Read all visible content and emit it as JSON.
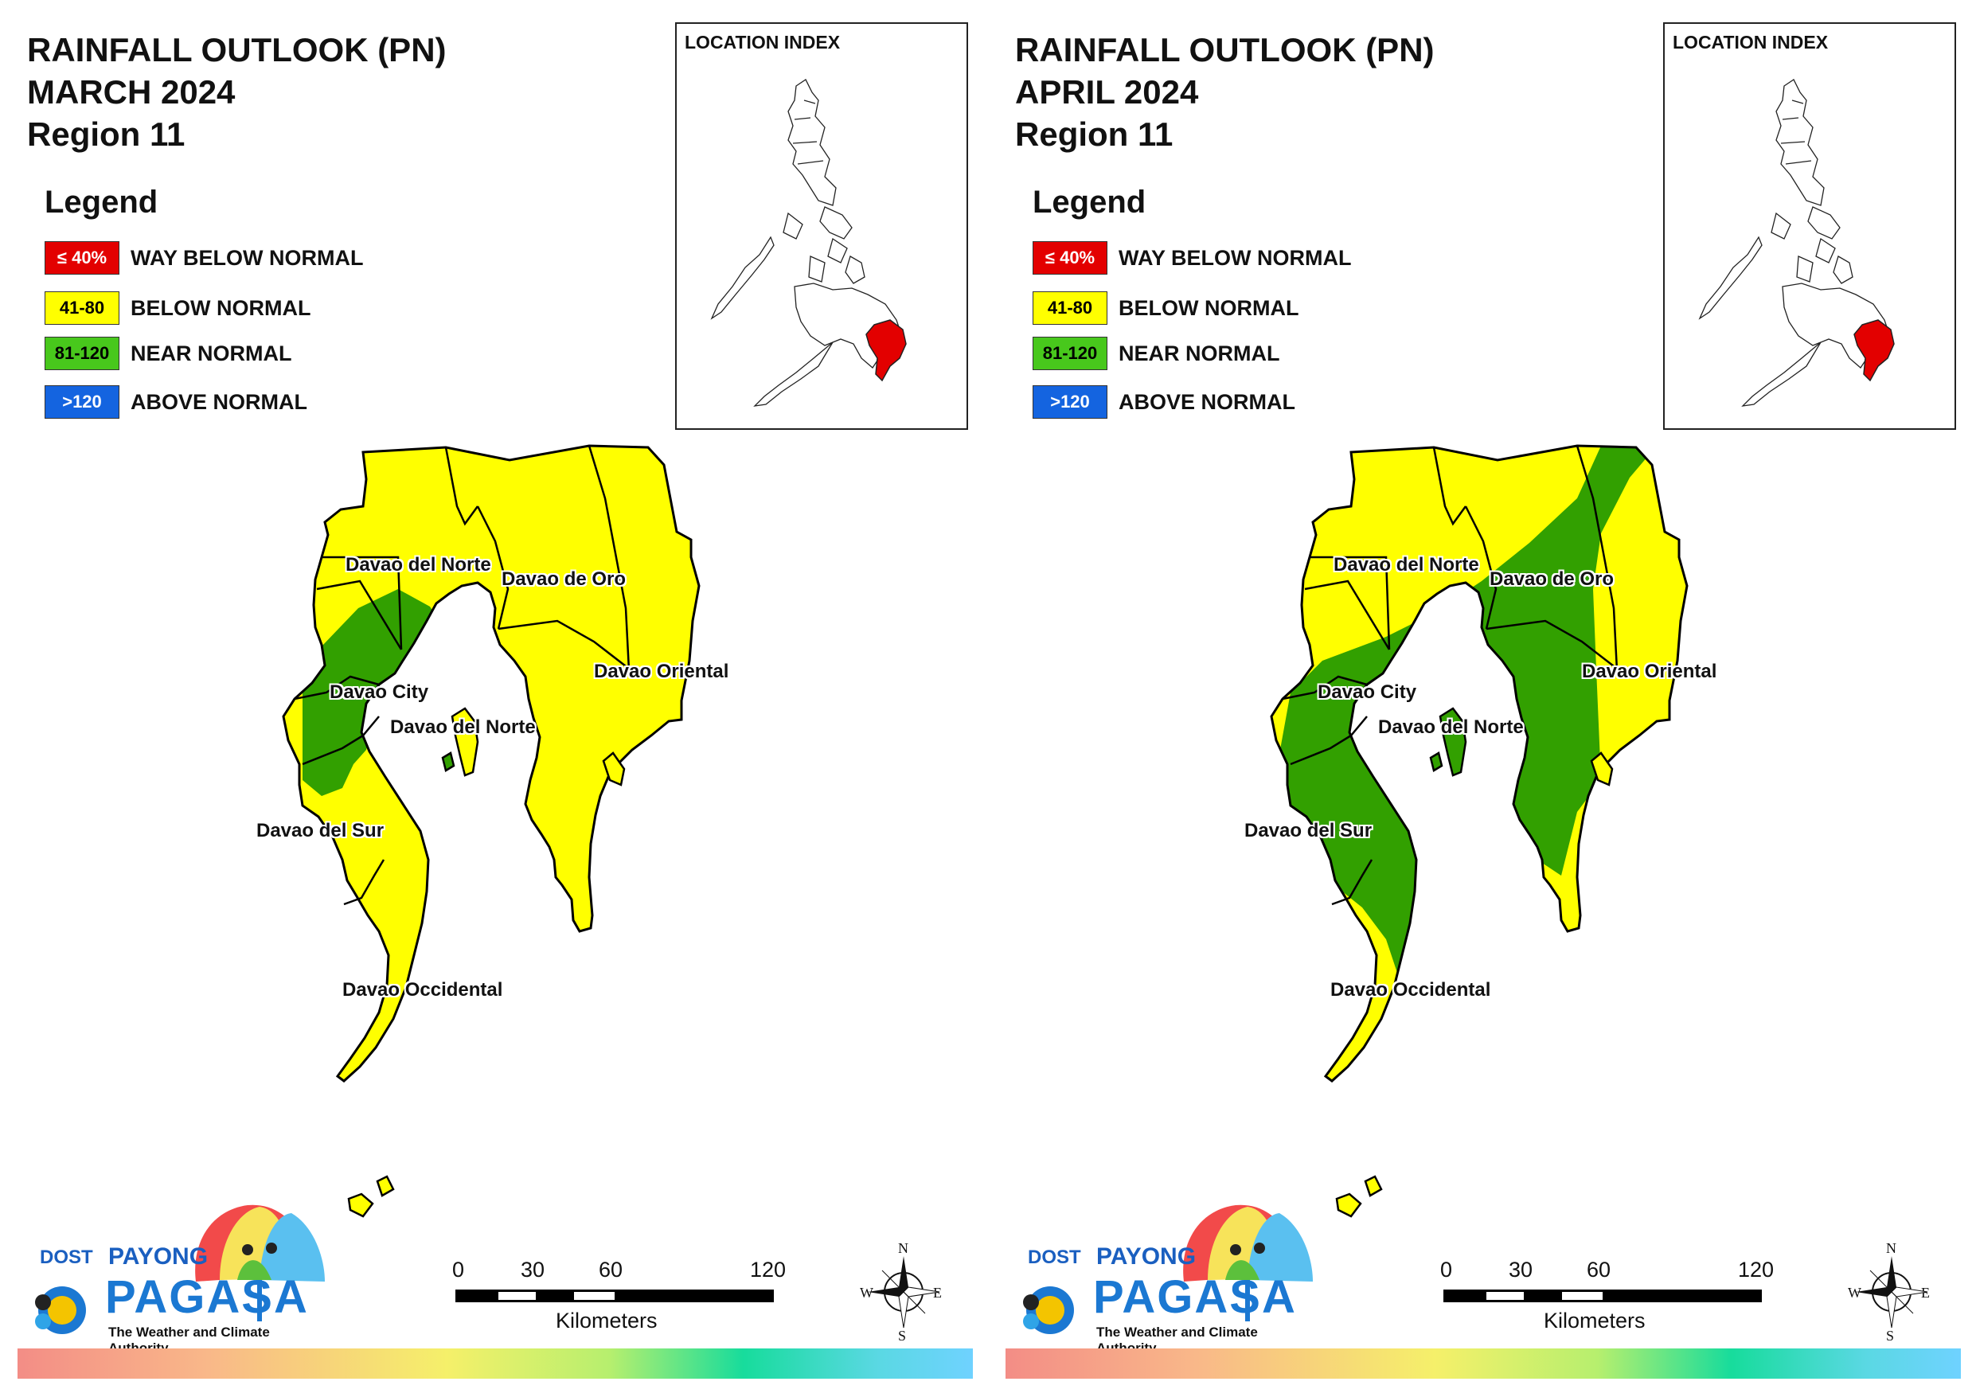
{
  "colors": {
    "way_below": "#e30000",
    "below": "#ffff00",
    "near": "#32a000",
    "above": "#1464e0",
    "outline": "#000000"
  },
  "legend": {
    "title": "Legend",
    "items": [
      {
        "range": "≤ 40%",
        "label": "WAY BELOW NORMAL",
        "color": "#e30000",
        "text_color": "#ffffff"
      },
      {
        "range": "41-80",
        "label": "BELOW NORMAL",
        "color": "#ffff00",
        "text_color": "#000000"
      },
      {
        "range": "81-120",
        "label": "NEAR NORMAL",
        "color": "#48c81c",
        "text_color": "#000000"
      },
      {
        "range": ">120",
        "label": "ABOVE NORMAL",
        "color": "#1464e0",
        "text_color": "#ffffff"
      }
    ]
  },
  "inset": {
    "title": "LOCATION INDEX"
  },
  "scale": {
    "ticks": [
      "0",
      "30",
      "60",
      "120"
    ],
    "unit": "Kilometers"
  },
  "compass": {
    "n": "N",
    "s": "S",
    "e": "E",
    "w": "W"
  },
  "logo": {
    "dost": "DOST",
    "payong": "PAYONG",
    "pagasa": "PAGASA",
    "tagline": "The Weather and Climate Authority"
  },
  "panels": [
    {
      "title_line1": "RAINFALL OUTLOOK (PN)",
      "title_line2": "MARCH 2024",
      "title_line3": "Region 11",
      "provinces": [
        {
          "name": "Davao del Norte",
          "category": "below"
        },
        {
          "name": "Davao de Oro",
          "category": "below"
        },
        {
          "name": "Davao Oriental",
          "category": "below"
        },
        {
          "name": "Davao City",
          "category": "near"
        },
        {
          "name": "Davao del Norte",
          "category": "below"
        },
        {
          "name": "Davao del Sur",
          "category": "below"
        },
        {
          "name": "Davao Occidental",
          "category": "below"
        }
      ]
    },
    {
      "title_line1": "RAINFALL OUTLOOK (PN)",
      "title_line2": "APRIL 2024",
      "title_line3": "Region 11",
      "provinces": [
        {
          "name": "Davao del Norte",
          "category": "below"
        },
        {
          "name": "Davao de Oro",
          "category": "near"
        },
        {
          "name": "Davao Oriental",
          "category": "near"
        },
        {
          "name": "Davao City",
          "category": "near"
        },
        {
          "name": "Davao del Norte",
          "category": "near"
        },
        {
          "name": "Davao del Sur",
          "category": "near"
        },
        {
          "name": "Davao Occidental",
          "category": "below"
        }
      ]
    }
  ]
}
